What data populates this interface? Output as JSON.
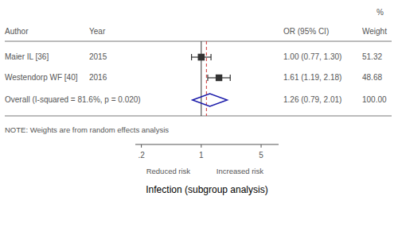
{
  "chart_data": {
    "type": "forest",
    "log": "x",
    "xlim": [
      0.17,
      8.0
    ],
    "xticks": [
      {
        "value": 0.2,
        "label": ".2"
      },
      1,
      5
    ],
    "xlabel": "Infection (subgroup analysis)",
    "xlabel_left": "Reduced risk",
    "xlabel_right": "Increased risk",
    "weight_unit_label": "%",
    "headers": [
      "Author",
      "Year",
      "OR (95% CI)",
      "Weight"
    ],
    "color": "#333333",
    "studies": [
      {
        "name": "Maier IL [36]",
        "year": "2015",
        "or": 1.0,
        "ci_low": 0.77,
        "ci_high": 1.3,
        "weight": 51.32,
        "or_label": "1.00 (0.77, 1.30)",
        "weight_label": "51.32"
      },
      {
        "name": "Westendorp WF [40]",
        "year": "2016",
        "or": 1.61,
        "ci_low": 1.19,
        "ci_high": 2.18,
        "weight": 48.68,
        "or_label": "1.61 (1.19, 2.18)",
        "weight_label": "48.68"
      }
    ],
    "overall": {
      "name": "Overall  (I-squared = 81.6%, p = 0.020)",
      "or": 1.26,
      "ci_low": 0.79,
      "ci_high": 2.01,
      "or_label": "1.26 (0.79, 2.01)",
      "weight_label": "100.00",
      "color": "#1a1aaa"
    },
    "reference_lines": [
      {
        "value": 1.0,
        "color": "#333333",
        "line_style": "solid"
      },
      {
        "value": 1.15,
        "color": "#cc3333",
        "line_style": "dashed"
      }
    ],
    "note": "NOTE: Weights are from random effects analysis"
  }
}
